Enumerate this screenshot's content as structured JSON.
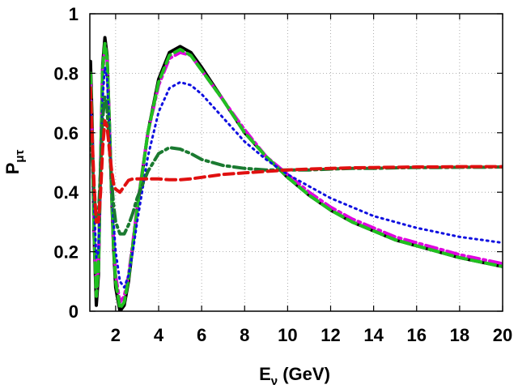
{
  "chart_data": {
    "type": "line",
    "xlabel_main": "E",
    "xlabel_sub": "ν",
    "xlabel_unit": " (GeV)",
    "ylabel_main": "P",
    "ylabel_sub": "μτ",
    "xlim": [
      0.8,
      20
    ],
    "ylim": [
      0,
      1
    ],
    "xticks": [
      2,
      4,
      6,
      8,
      10,
      12,
      14,
      16,
      18,
      20
    ],
    "yticks": [
      0,
      0.2,
      0.4,
      0.6,
      0.8,
      1
    ],
    "ytick_labels": [
      "0",
      "0.2",
      "0.4",
      "0.6",
      "0.8",
      "1"
    ],
    "grid": true,
    "series": [
      {
        "color": "#000000",
        "style": "solid",
        "x": [
          0.83,
          0.9,
          1.0,
          1.1,
          1.2,
          1.3,
          1.4,
          1.5,
          1.6,
          1.7,
          1.8,
          1.9,
          2.0,
          2.2,
          2.4,
          2.6,
          2.8,
          3.0,
          3.5,
          4.0,
          4.5,
          5.0,
          5.5,
          6.0,
          7.0,
          8.0,
          9.0,
          10.0,
          11.0,
          12.0,
          13.0,
          14.0,
          15.0,
          16.0,
          17.0,
          18.0,
          19.0,
          20.0
        ],
        "y": [
          0.84,
          0.65,
          0.25,
          0.02,
          0.12,
          0.5,
          0.83,
          0.92,
          0.86,
          0.65,
          0.42,
          0.22,
          0.08,
          0.0,
          0.02,
          0.1,
          0.22,
          0.34,
          0.6,
          0.78,
          0.87,
          0.89,
          0.87,
          0.82,
          0.71,
          0.6,
          0.52,
          0.45,
          0.39,
          0.34,
          0.3,
          0.27,
          0.24,
          0.22,
          0.2,
          0.18,
          0.165,
          0.15
        ]
      },
      {
        "color": "#e000e0",
        "style": "dashdot",
        "x": [
          0.83,
          0.9,
          1.0,
          1.1,
          1.2,
          1.3,
          1.4,
          1.5,
          1.6,
          1.7,
          1.8,
          1.9,
          2.0,
          2.2,
          2.4,
          2.6,
          2.8,
          3.0,
          3.5,
          4.0,
          4.5,
          5.0,
          5.5,
          6.0,
          7.0,
          8.0,
          9.0,
          10.0,
          11.0,
          12.0,
          13.0,
          14.0,
          15.0,
          16.0,
          17.0,
          18.0,
          19.0,
          20.0
        ],
        "y": [
          0.78,
          0.6,
          0.26,
          0.08,
          0.15,
          0.5,
          0.8,
          0.89,
          0.84,
          0.65,
          0.44,
          0.25,
          0.12,
          0.03,
          0.05,
          0.12,
          0.23,
          0.35,
          0.6,
          0.76,
          0.85,
          0.87,
          0.86,
          0.81,
          0.71,
          0.61,
          0.52,
          0.46,
          0.4,
          0.35,
          0.31,
          0.28,
          0.25,
          0.23,
          0.21,
          0.19,
          0.175,
          0.16
        ]
      },
      {
        "color": "#20c020",
        "style": "dashed",
        "x": [
          0.83,
          0.9,
          1.0,
          1.1,
          1.2,
          1.3,
          1.4,
          1.5,
          1.6,
          1.7,
          1.8,
          1.9,
          2.0,
          2.2,
          2.4,
          2.6,
          2.8,
          3.0,
          3.5,
          4.0,
          4.5,
          5.0,
          5.5,
          6.0,
          7.0,
          8.0,
          9.0,
          10.0,
          11.0,
          12.0,
          13.0,
          14.0,
          15.0,
          16.0,
          17.0,
          18.0,
          19.0,
          20.0
        ],
        "y": [
          0.8,
          0.62,
          0.26,
          0.05,
          0.14,
          0.5,
          0.82,
          0.9,
          0.85,
          0.65,
          0.43,
          0.23,
          0.1,
          0.01,
          0.03,
          0.11,
          0.22,
          0.34,
          0.6,
          0.77,
          0.86,
          0.88,
          0.86,
          0.81,
          0.71,
          0.6,
          0.52,
          0.45,
          0.39,
          0.34,
          0.3,
          0.27,
          0.24,
          0.22,
          0.2,
          0.18,
          0.165,
          0.15
        ]
      },
      {
        "color": "#1010e0",
        "style": "dotted",
        "x": [
          0.83,
          0.9,
          1.0,
          1.1,
          1.2,
          1.3,
          1.4,
          1.5,
          1.6,
          1.7,
          1.8,
          1.9,
          2.0,
          2.2,
          2.4,
          2.6,
          2.8,
          3.0,
          3.5,
          4.0,
          4.5,
          5.0,
          5.5,
          6.0,
          7.0,
          8.0,
          9.0,
          10.0,
          11.0,
          12.0,
          13.0,
          14.0,
          15.0,
          16.0,
          17.0,
          18.0,
          19.0,
          20.0
        ],
        "y": [
          0.7,
          0.58,
          0.35,
          0.18,
          0.2,
          0.45,
          0.72,
          0.82,
          0.78,
          0.62,
          0.45,
          0.3,
          0.2,
          0.1,
          0.08,
          0.12,
          0.2,
          0.3,
          0.52,
          0.67,
          0.75,
          0.77,
          0.76,
          0.73,
          0.65,
          0.57,
          0.51,
          0.46,
          0.42,
          0.38,
          0.35,
          0.32,
          0.3,
          0.28,
          0.265,
          0.25,
          0.24,
          0.23
        ]
      },
      {
        "color": "#1a7a30",
        "style": "dashdot",
        "x": [
          0.83,
          0.9,
          1.0,
          1.1,
          1.2,
          1.3,
          1.4,
          1.5,
          1.6,
          1.7,
          1.8,
          1.9,
          2.0,
          2.2,
          2.4,
          2.6,
          2.8,
          3.0,
          3.5,
          4.0,
          4.5,
          5.0,
          5.5,
          6.0,
          7.0,
          8.0,
          9.0,
          10.0,
          11.0,
          12.0,
          13.0,
          14.0,
          15.0,
          16.0,
          17.0,
          18.0,
          19.0,
          20.0
        ],
        "y": [
          0.6,
          0.52,
          0.4,
          0.3,
          0.32,
          0.48,
          0.65,
          0.72,
          0.68,
          0.56,
          0.45,
          0.36,
          0.3,
          0.26,
          0.26,
          0.29,
          0.33,
          0.38,
          0.47,
          0.53,
          0.55,
          0.545,
          0.53,
          0.51,
          0.49,
          0.48,
          0.475,
          0.475,
          0.475,
          0.478,
          0.48,
          0.48,
          0.482,
          0.483,
          0.483,
          0.484,
          0.484,
          0.485
        ]
      },
      {
        "color": "#e01010",
        "style": "dashed",
        "x": [
          0.83,
          0.9,
          1.0,
          1.1,
          1.2,
          1.3,
          1.4,
          1.5,
          1.6,
          1.7,
          1.8,
          1.9,
          2.0,
          2.2,
          2.4,
          2.6,
          2.8,
          3.0,
          3.5,
          4.0,
          4.5,
          5.0,
          5.5,
          6.0,
          7.0,
          8.0,
          9.0,
          10.0,
          11.0,
          12.0,
          13.0,
          14.0,
          15.0,
          16.0,
          17.0,
          18.0,
          19.0,
          20.0
        ],
        "y": [
          0.75,
          0.6,
          0.42,
          0.3,
          0.3,
          0.4,
          0.55,
          0.64,
          0.62,
          0.55,
          0.48,
          0.43,
          0.41,
          0.4,
          0.42,
          0.44,
          0.445,
          0.445,
          0.445,
          0.445,
          0.442,
          0.442,
          0.445,
          0.45,
          0.46,
          0.465,
          0.47,
          0.475,
          0.478,
          0.48,
          0.482,
          0.483,
          0.484,
          0.485,
          0.485,
          0.486,
          0.486,
          0.486
        ]
      }
    ]
  }
}
